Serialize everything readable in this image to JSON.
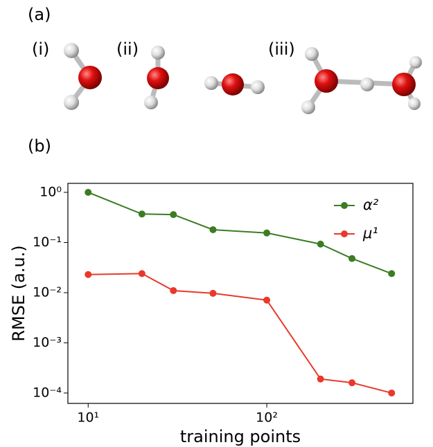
{
  "figure_labels": [
    "(a)",
    "(i)",
    "(ii)",
    "(iii)",
    "(b)"
  ],
  "chart_data": {
    "type": "line",
    "x_label": "training points",
    "y_label": "RMSE (a.u.)",
    "x": [
      10,
      20,
      30,
      50,
      100,
      200,
      300,
      500
    ],
    "series": [
      {
        "name": "α²",
        "color": "#3a7d22",
        "values": [
          1.0,
          0.37,
          0.36,
          0.18,
          0.155,
          0.093,
          0.048,
          0.024
        ]
      },
      {
        "name": "μ¹",
        "color": "#e8392b",
        "values": [
          0.023,
          0.024,
          0.011,
          0.0097,
          0.0071,
          0.00019,
          0.00016,
          0.0001
        ]
      }
    ],
    "xscale": "log",
    "yscale": "log",
    "xlim": [
      7.7,
      658
    ],
    "ylim": [
      6.2e-05,
      1.51
    ],
    "xticks": [
      {
        "value": 10,
        "label": "10¹"
      },
      {
        "value": 100,
        "label": "10²"
      }
    ],
    "yticks": [
      {
        "value": 1,
        "label": "10⁰"
      },
      {
        "value": 0.1,
        "label": "10⁻¹"
      },
      {
        "value": 0.01,
        "label": "10⁻²"
      },
      {
        "value": 0.001,
        "label": "10⁻³"
      },
      {
        "value": 0.0001,
        "label": "10⁻⁴"
      }
    ],
    "grid": false,
    "legend": "upper right"
  }
}
